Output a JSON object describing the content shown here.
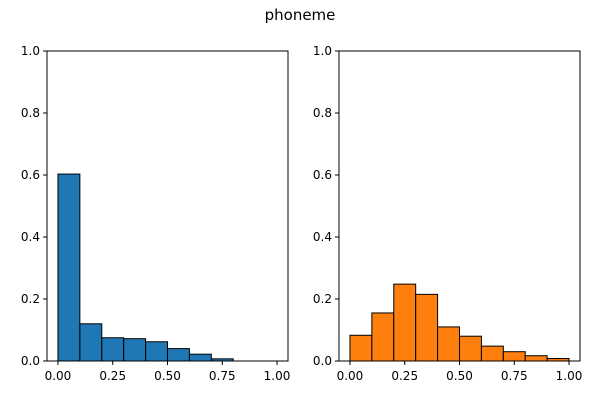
{
  "figure": {
    "title": "phoneme"
  },
  "chart_data": [
    {
      "type": "bar",
      "subtype": "histogram",
      "color": "#1f77b4",
      "edgecolor": "#000000",
      "bin_edges": [
        0.0,
        0.1,
        0.2,
        0.3,
        0.4,
        0.5,
        0.6,
        0.7,
        0.8,
        0.9,
        1.0
      ],
      "values": [
        0.603,
        0.12,
        0.075,
        0.072,
        0.062,
        0.04,
        0.022,
        0.007,
        0.0,
        0.0
      ],
      "xlim": [
        -0.05,
        1.05
      ],
      "ylim": [
        0,
        1.0
      ],
      "xticks": [
        0.0,
        0.25,
        0.5,
        0.75,
        1.0
      ],
      "xtick_labels": [
        "0.00",
        "0.25",
        "0.50",
        "0.75",
        "1.00"
      ],
      "yticks": [
        0.0,
        0.2,
        0.4,
        0.6,
        0.8,
        1.0
      ],
      "ytick_labels": [
        "0.0",
        "0.2",
        "0.4",
        "0.6",
        "0.8",
        "1.0"
      ],
      "grid": false
    },
    {
      "type": "bar",
      "subtype": "histogram",
      "color": "#ff7f0e",
      "edgecolor": "#000000",
      "bin_edges": [
        0.0,
        0.1,
        0.2,
        0.3,
        0.4,
        0.5,
        0.6,
        0.7,
        0.8,
        0.9,
        1.0
      ],
      "values": [
        0.083,
        0.155,
        0.248,
        0.215,
        0.11,
        0.08,
        0.048,
        0.03,
        0.017,
        0.008
      ],
      "xlim": [
        -0.05,
        1.05
      ],
      "ylim": [
        0,
        1.0
      ],
      "xticks": [
        0.0,
        0.25,
        0.5,
        0.75,
        1.0
      ],
      "xtick_labels": [
        "0.00",
        "0.25",
        "0.50",
        "0.75",
        "1.00"
      ],
      "yticks": [
        0.0,
        0.2,
        0.4,
        0.6,
        0.8,
        1.0
      ],
      "ytick_labels": [
        "0.0",
        "0.2",
        "0.4",
        "0.6",
        "0.8",
        "1.0"
      ],
      "grid": false
    }
  ]
}
